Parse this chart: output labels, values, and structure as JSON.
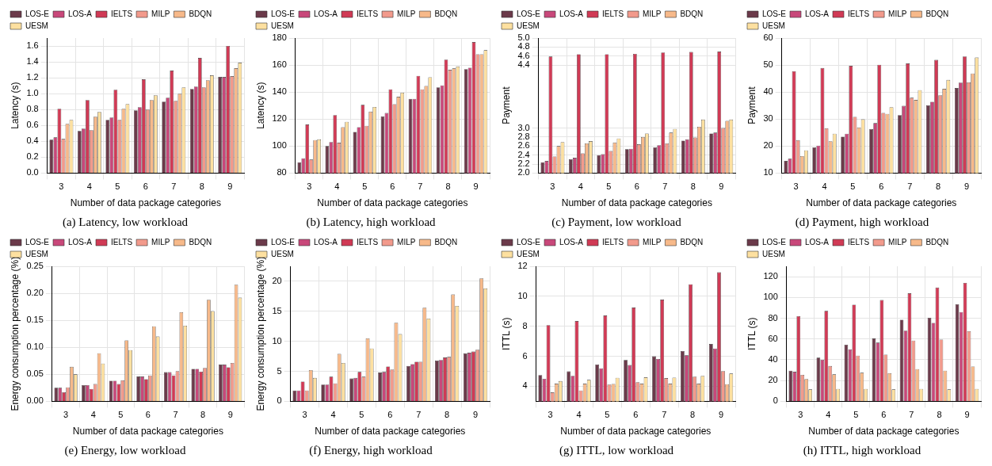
{
  "chart_data": [
    {
      "type": "bar",
      "title": "(a) Latency, low workload",
      "xlabel": "Number of data package categories",
      "ylabel": "Latency (s)",
      "categories": [
        "3",
        "4",
        "5",
        "6",
        "7",
        "8",
        "9"
      ],
      "ylim": [
        0,
        1.7
      ],
      "yticks": [
        {
          "value": 0,
          "label": "0.0"
        },
        0.2,
        0.4,
        0.6,
        0.8,
        {
          "value": 1,
          "label": "1.0"
        },
        1.2,
        1.4,
        1.6
      ],
      "grid": true,
      "legend": "top left",
      "series": [
        {
          "name": "LOS-E",
          "color": "#6b3a4a",
          "values": [
            0.42,
            0.53,
            0.67,
            0.79,
            0.9,
            1.06,
            1.21
          ]
        },
        {
          "name": "LOS-A",
          "color": "#c8487a",
          "values": [
            0.45,
            0.56,
            0.7,
            0.83,
            0.95,
            1.09,
            1.21
          ]
        },
        {
          "name": "IELTS",
          "color": "#d03a55",
          "values": [
            0.81,
            0.92,
            1.05,
            1.18,
            1.29,
            1.45,
            1.6
          ]
        },
        {
          "name": "MILP",
          "color": "#f29a8c",
          "values": [
            0.43,
            0.54,
            0.67,
            0.8,
            0.91,
            1.08,
            1.22
          ]
        },
        {
          "name": "BDQN",
          "color": "#f7b98a",
          "values": [
            0.62,
            0.71,
            0.81,
            0.92,
            1.0,
            1.17,
            1.32
          ]
        },
        {
          "name": "UESM",
          "color": "#fde0a0",
          "values": [
            0.67,
            0.77,
            0.87,
            0.98,
            1.08,
            1.23,
            1.39
          ]
        }
      ]
    },
    {
      "type": "bar",
      "title": "(b) Latency, high workload",
      "xlabel": "Number of data package categories",
      "ylabel": "Latency (s)",
      "categories": [
        "3",
        "4",
        "5",
        "6",
        "7",
        "8",
        "9"
      ],
      "ylim": [
        80,
        180
      ],
      "yticks": [
        80,
        100,
        120,
        140,
        160,
        180
      ],
      "grid": true,
      "legend": "top left",
      "series": [
        {
          "name": "LOS-E",
          "color": "#6b3a4a",
          "values": [
            88,
            100,
            110.5,
            122,
            135,
            143.5,
            157
          ]
        },
        {
          "name": "LOS-A",
          "color": "#c8487a",
          "values": [
            91,
            103,
            114,
            124.5,
            135,
            145,
            158
          ]
        },
        {
          "name": "IELTS",
          "color": "#d03a55",
          "values": [
            116,
            123,
            130.5,
            142,
            152,
            164,
            177
          ]
        },
        {
          "name": "MILP",
          "color": "#f29a8c",
          "values": [
            90,
            102.5,
            115,
            131,
            142,
            156.5,
            168
          ]
        },
        {
          "name": "BDQN",
          "color": "#f7b98a",
          "values": [
            104.5,
            114,
            125.5,
            136.5,
            144.5,
            157.5,
            168
          ]
        },
        {
          "name": "UESM",
          "color": "#fde0a0",
          "values": [
            105,
            118,
            129,
            139.5,
            151,
            159,
            171
          ]
        }
      ]
    },
    {
      "type": "bar",
      "title": "(c) Payment, low workload",
      "xlabel": "Number of data package categories",
      "ylabel": "Payment",
      "categories": [
        "3",
        "4",
        "5",
        "6",
        "7",
        "8",
        "9"
      ],
      "ylim": [
        2,
        5
      ],
      "yticks": [
        {
          "value": 2,
          "label": "2.0"
        },
        2.2,
        2.4,
        2.6,
        2.8,
        {
          "value": 3,
          "label": "3.0"
        },
        4.4,
        4.6,
        4.8,
        {
          "value": 5,
          "label": "5.0"
        }
      ],
      "grid": true,
      "legend": "top left",
      "series": [
        {
          "name": "LOS-E",
          "color": "#6b3a4a",
          "values": [
            2.24,
            2.31,
            2.4,
            2.53,
            2.57,
            2.72,
            2.88
          ]
        },
        {
          "name": "LOS-A",
          "color": "#c8487a",
          "values": [
            2.27,
            2.34,
            2.42,
            2.54,
            2.62,
            2.75,
            2.9
          ]
        },
        {
          "name": "IELTS",
          "color": "#d03a55",
          "values": [
            4.59,
            4.64,
            4.64,
            4.65,
            4.68,
            4.69,
            4.7
          ]
        },
        {
          "name": "MILP",
          "color": "#f29a8c",
          "values": [
            2.37,
            2.44,
            2.49,
            2.64,
            2.66,
            2.79,
            3.0
          ]
        },
        {
          "name": "BDQN",
          "color": "#f7b98a",
          "values": [
            2.6,
            2.66,
            2.68,
            2.8,
            2.9,
            3.03,
            3.16
          ]
        },
        {
          "name": "UESM",
          "color": "#fde0a0",
          "values": [
            2.69,
            2.71,
            2.77,
            2.88,
            2.98,
            3.19,
            3.19
          ]
        }
      ]
    },
    {
      "type": "bar",
      "title": "(d) Payment, high workload",
      "xlabel": "Number of data package categories",
      "ylabel": "Payment",
      "categories": [
        "3",
        "4",
        "5",
        "6",
        "7",
        "8",
        "9"
      ],
      "ylim": [
        10,
        60
      ],
      "yticks": [
        10,
        20,
        30,
        40,
        50,
        60
      ],
      "grid": true,
      "legend": "top left",
      "series": [
        {
          "name": "LOS-E",
          "color": "#6b3a4a",
          "values": [
            14.5,
            19.5,
            23.5,
            26.3,
            31.5,
            35.1,
            41.5
          ]
        },
        {
          "name": "LOS-A",
          "color": "#c8487a",
          "values": [
            15.3,
            20.2,
            24.6,
            28.5,
            34.9,
            36.4,
            43.5
          ]
        },
        {
          "name": "IELTS",
          "color": "#d03a55",
          "values": [
            47.7,
            48.9,
            49.7,
            50.1,
            50.6,
            51.9,
            53.2
          ]
        },
        {
          "name": "MILP",
          "color": "#f29a8c",
          "values": [
            22.2,
            26.6,
            30.8,
            32.3,
            37.9,
            38.8,
            43.6
          ]
        },
        {
          "name": "BDQN",
          "color": "#f7b98a",
          "values": [
            16.3,
            21.8,
            26.9,
            31.9,
            37.1,
            41.2,
            46.9
          ]
        },
        {
          "name": "UESM",
          "color": "#fde0a0",
          "values": [
            18.4,
            24.6,
            29.9,
            34.4,
            40.7,
            44.5,
            52.8
          ]
        }
      ]
    },
    {
      "type": "bar",
      "title": "(e) Energy, low workload",
      "xlabel": "Number of data package categories",
      "ylabel": "Energy consumption percentage (%)",
      "categories": [
        "3",
        "4",
        "5",
        "6",
        "7",
        "8",
        "9"
      ],
      "ylim": [
        0,
        0.25
      ],
      "yticks": [
        {
          "value": 0,
          "label": "0.00"
        },
        0.05,
        {
          "value": 0.1,
          "label": "0.10"
        },
        0.15,
        {
          "value": 0.2,
          "label": "0.20"
        },
        0.25
      ],
      "grid": true,
      "legend": "top left",
      "series": [
        {
          "name": "LOS-E",
          "color": "#6b3a4a",
          "values": [
            0.025,
            0.03,
            0.038,
            0.046,
            0.054,
            0.06,
            0.068
          ]
        },
        {
          "name": "LOS-A",
          "color": "#c8487a",
          "values": [
            0.025,
            0.03,
            0.038,
            0.046,
            0.054,
            0.06,
            0.068
          ]
        },
        {
          "name": "IELTS",
          "color": "#d03a55",
          "values": [
            0.017,
            0.023,
            0.032,
            0.041,
            0.048,
            0.055,
            0.063
          ]
        },
        {
          "name": "MILP",
          "color": "#f29a8c",
          "values": [
            0.026,
            0.032,
            0.039,
            0.048,
            0.056,
            0.062,
            0.071
          ]
        },
        {
          "name": "BDQN",
          "color": "#f7b98a",
          "values": [
            0.064,
            0.089,
            0.113,
            0.139,
            0.165,
            0.188,
            0.216
          ]
        },
        {
          "name": "UESM",
          "color": "#fde0a0",
          "values": [
            0.05,
            0.07,
            0.095,
            0.12,
            0.14,
            0.167,
            0.192
          ]
        }
      ]
    },
    {
      "type": "bar",
      "title": "(f) Energy, high workload",
      "xlabel": "Number of data package categories",
      "ylabel": "Energy consumption percentage (%)",
      "categories": [
        "3",
        "4",
        "5",
        "6",
        "7",
        "8",
        "9"
      ],
      "ylim": [
        0,
        22.5
      ],
      "yticks": [
        0,
        5,
        10,
        15,
        20
      ],
      "grid": true,
      "legend": "top left",
      "series": [
        {
          "name": "LOS-E",
          "color": "#6b3a4a",
          "values": [
            1.8,
            2.8,
            3.8,
            4.8,
            5.9,
            6.8,
            8.0
          ]
        },
        {
          "name": "LOS-A",
          "color": "#c8487a",
          "values": [
            1.8,
            2.8,
            3.9,
            4.9,
            6.2,
            6.9,
            8.1
          ]
        },
        {
          "name": "IELTS",
          "color": "#d03a55",
          "values": [
            3.3,
            4.1,
            4.9,
            5.8,
            6.6,
            7.3,
            8.3
          ]
        },
        {
          "name": "MILP",
          "color": "#f29a8c",
          "values": [
            1.8,
            3.0,
            4.1,
            5.3,
            6.6,
            7.4,
            8.6
          ]
        },
        {
          "name": "BDQN",
          "color": "#f7b98a",
          "values": [
            5.2,
            7.9,
            10.5,
            13.1,
            15.6,
            17.8,
            20.5
          ]
        },
        {
          "name": "UESM",
          "color": "#fde0a0",
          "values": [
            3.9,
            6.4,
            8.8,
            11.2,
            13.8,
            15.9,
            18.8
          ]
        }
      ]
    },
    {
      "type": "bar",
      "title": "(g) ITTL, low workload",
      "xlabel": "Number of data package categories",
      "ylabel": "ITTL (s)",
      "categories": [
        "3",
        "4",
        "5",
        "6",
        "7",
        "8",
        "9"
      ],
      "ylim": [
        3,
        12
      ],
      "yticks": [
        4,
        6,
        8,
        10,
        12
      ],
      "grid": true,
      "legend": "top left",
      "series": [
        {
          "name": "LOS-E",
          "color": "#6b3a4a",
          "values": [
            4.75,
            5.0,
            5.45,
            5.75,
            6.0,
            6.35,
            6.82
          ]
        },
        {
          "name": "LOS-A",
          "color": "#c8487a",
          "values": [
            4.5,
            4.7,
            5.2,
            5.42,
            5.82,
            6.07,
            6.52
          ]
        },
        {
          "name": "IELTS",
          "color": "#d03a55",
          "values": [
            8.08,
            8.35,
            8.72,
            9.25,
            9.78,
            10.8,
            11.6
          ]
        },
        {
          "name": "MILP",
          "color": "#f29a8c",
          "values": [
            3.6,
            3.72,
            4.12,
            4.28,
            4.55,
            4.65,
            5.02
          ]
        },
        {
          "name": "BDQN",
          "color": "#f7b98a",
          "values": [
            4.18,
            4.18,
            4.16,
            4.18,
            4.18,
            4.18,
            4.15
          ]
        },
        {
          "name": "UESM",
          "color": "#fde0a0",
          "values": [
            4.35,
            4.43,
            4.57,
            4.6,
            4.58,
            4.7,
            4.85
          ]
        }
      ]
    },
    {
      "type": "bar",
      "title": "(h) ITTL, high workload",
      "xlabel": "Number of data package categories",
      "ylabel": "ITTL (s)",
      "categories": [
        "3",
        "4",
        "5",
        "6",
        "7",
        "8",
        "9"
      ],
      "ylim": [
        0,
        130
      ],
      "yticks": [
        0,
        20,
        40,
        60,
        80,
        100,
        120
      ],
      "grid": true,
      "legend": "top left",
      "series": [
        {
          "name": "LOS-E",
          "color": "#6b3a4a",
          "values": [
            29.5,
            42,
            54.5,
            60.5,
            78.5,
            80.5,
            93.5
          ]
        },
        {
          "name": "LOS-A",
          "color": "#c8487a",
          "values": [
            28.5,
            40,
            50,
            56.5,
            68,
            75.5,
            86
          ]
        },
        {
          "name": "IELTS",
          "color": "#d03a55",
          "values": [
            82,
            87,
            93,
            97.5,
            104,
            109.5,
            114
          ]
        },
        {
          "name": "MILP",
          "color": "#f29a8c",
          "values": [
            25.5,
            34,
            44,
            45,
            58.5,
            59.5,
            67.5
          ]
        },
        {
          "name": "BDQN",
          "color": "#f7b98a",
          "values": [
            21.5,
            26,
            27.5,
            27,
            31,
            29.5,
            33.5
          ]
        },
        {
          "name": "UESM",
          "color": "#fde0a0",
          "values": [
            11.5,
            12,
            12,
            11.5,
            12,
            11.5,
            12
          ]
        }
      ]
    }
  ]
}
